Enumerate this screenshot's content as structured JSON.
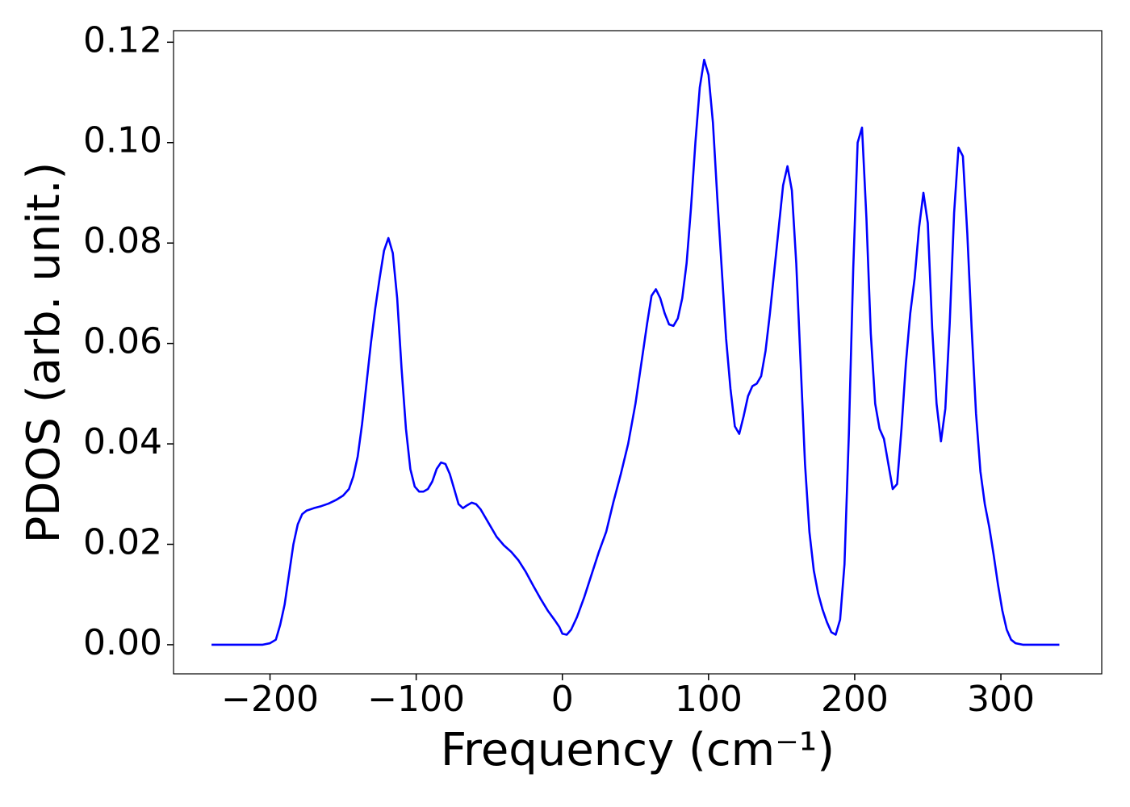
{
  "chart_data": {
    "type": "line",
    "xlabel": "Frequency (cm⁻¹)",
    "ylabel": "PDOS (arb. unit.)",
    "color": "#0000ff",
    "x": [
      -240,
      -205,
      -200,
      -196,
      -193,
      -190,
      -187,
      -184,
      -181,
      -178,
      -175,
      -170,
      -165,
      -160,
      -155,
      -150,
      -146,
      -143,
      -140,
      -137,
      -134,
      -131,
      -128,
      -125,
      -122,
      -119,
      -116,
      -113,
      -110,
      -107,
      -104,
      -101,
      -98,
      -95,
      -92,
      -89,
      -86,
      -83,
      -80,
      -77,
      -74,
      -71,
      -68,
      -65,
      -62,
      -59,
      -56,
      -53,
      -50,
      -45,
      -40,
      -35,
      -30,
      -25,
      -20,
      -15,
      -10,
      -5,
      -2,
      0,
      3,
      6,
      10,
      15,
      20,
      25,
      30,
      35,
      40,
      45,
      50,
      55,
      58,
      61,
      64,
      67,
      70,
      73,
      76,
      79,
      82,
      85,
      88,
      91,
      94,
      97,
      100,
      103,
      106,
      109,
      112,
      115,
      118,
      121,
      124,
      127,
      130,
      133,
      136,
      139,
      142,
      145,
      148,
      151,
      154,
      157,
      160,
      163,
      166,
      169,
      172,
      175,
      178,
      181,
      184,
      187,
      190,
      193,
      196,
      199,
      202,
      205,
      208,
      211,
      214,
      217,
      220,
      223,
      226,
      229,
      232,
      235,
      238,
      241,
      244,
      247,
      250,
      253,
      256,
      259,
      262,
      265,
      268,
      271,
      274,
      277,
      280,
      283,
      286,
      289,
      292,
      295,
      298,
      301,
      304,
      307,
      310,
      315,
      340
    ],
    "values": [
      0,
      0,
      0.0003,
      0.001,
      0.004,
      0.008,
      0.014,
      0.02,
      0.024,
      0.026,
      0.0267,
      0.0272,
      0.0276,
      0.0281,
      0.0288,
      0.0297,
      0.031,
      0.0335,
      0.0375,
      0.044,
      0.052,
      0.06,
      0.067,
      0.073,
      0.0785,
      0.081,
      0.078,
      0.069,
      0.055,
      0.043,
      0.035,
      0.0315,
      0.0305,
      0.0305,
      0.031,
      0.0325,
      0.035,
      0.0363,
      0.036,
      0.034,
      0.031,
      0.028,
      0.0272,
      0.0278,
      0.0283,
      0.028,
      0.027,
      0.0255,
      0.024,
      0.0215,
      0.0198,
      0.0185,
      0.0168,
      0.0145,
      0.0118,
      0.0092,
      0.0068,
      0.0048,
      0.0035,
      0.0022,
      0.002,
      0.003,
      0.0055,
      0.0095,
      0.014,
      0.0185,
      0.0225,
      0.0285,
      0.034,
      0.04,
      0.048,
      0.058,
      0.064,
      0.0695,
      0.0708,
      0.069,
      0.066,
      0.0638,
      0.0635,
      0.065,
      0.069,
      0.076,
      0.087,
      0.1,
      0.111,
      0.1165,
      0.1135,
      0.104,
      0.089,
      0.075,
      0.061,
      0.051,
      0.0435,
      0.042,
      0.0455,
      0.0495,
      0.0515,
      0.052,
      0.0535,
      0.0585,
      0.066,
      0.0745,
      0.083,
      0.0915,
      0.0953,
      0.0905,
      0.076,
      0.056,
      0.036,
      0.0225,
      0.0148,
      0.0102,
      0.007,
      0.0045,
      0.0025,
      0.002,
      0.005,
      0.016,
      0.042,
      0.075,
      0.1,
      0.103,
      0.085,
      0.062,
      0.048,
      0.043,
      0.041,
      0.036,
      0.031,
      0.032,
      0.043,
      0.056,
      0.066,
      0.073,
      0.083,
      0.09,
      0.084,
      0.063,
      0.048,
      0.0405,
      0.047,
      0.064,
      0.086,
      0.099,
      0.0973,
      0.082,
      0.063,
      0.046,
      0.0345,
      0.028,
      0.0235,
      0.018,
      0.012,
      0.0068,
      0.003,
      0.001,
      0.0003,
      0,
      0
    ],
    "xlim": [
      -266,
      369
    ],
    "ylim": [
      -0.0058,
      0.1223
    ],
    "xticks": [
      {
        "value": -200,
        "label": "−200"
      },
      {
        "value": -100,
        "label": "−100"
      },
      0,
      100,
      200,
      300
    ],
    "yticks": [
      {
        "value": 0,
        "label": "0.00"
      },
      {
        "value": 0.02,
        "label": "0.02"
      },
      {
        "value": 0.04,
        "label": "0.04"
      },
      {
        "value": 0.06,
        "label": "0.06"
      },
      {
        "value": 0.08,
        "label": "0.08"
      },
      {
        "value": 0.1,
        "label": "0.10"
      },
      {
        "value": 0.12,
        "label": "0.12"
      }
    ]
  }
}
